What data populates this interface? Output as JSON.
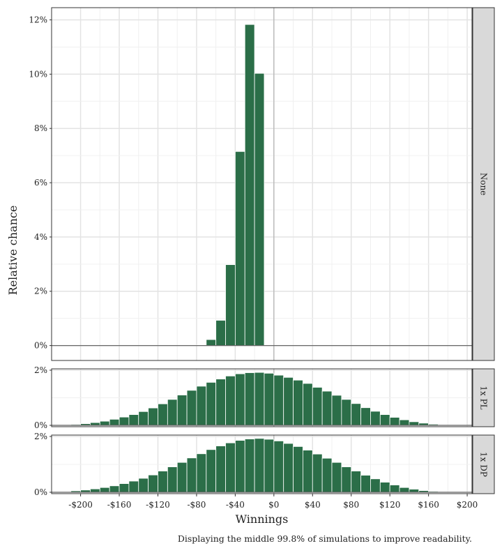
{
  "chart_data": {
    "type": "bar",
    "xlabel": "Winnings",
    "ylabel": "Relative chance",
    "caption": "Displaying the middle 99.8% of simulations to improve readability.",
    "x_ticks": [
      "-$200",
      "-$160",
      "-$120",
      "-$80",
      "-$40",
      "$0",
      "$40",
      "$80",
      "$120",
      "$160",
      "$200"
    ],
    "x_tick_values": [
      -200,
      -160,
      -120,
      -80,
      -40,
      0,
      40,
      80,
      120,
      160,
      200
    ],
    "xlim": [
      -230,
      205
    ],
    "bin_width": 10,
    "bar_color": "#2b6e48",
    "grid": true,
    "panels": [
      {
        "strip": "None",
        "ylim": [
          -0.55,
          12.45
        ],
        "y_ticks": [
          "0%",
          "2%",
          "4%",
          "6%",
          "8%",
          "10%",
          "12%"
        ],
        "y_tick_values": [
          0,
          2,
          4,
          6,
          8,
          10,
          12
        ],
        "bins_x": [
          -70,
          -60,
          -50,
          -40,
          -30,
          -20,
          -10
        ],
        "values": [
          0.02,
          0.22,
          0.93,
          2.98,
          7.15,
          11.83,
          10.03
        ]
      },
      {
        "strip": "1x PL",
        "ylim": [
          -0.05,
          2.05
        ],
        "y_ticks": [
          "0%",
          "2%"
        ],
        "y_tick_values": [
          0,
          2
        ],
        "bins_x": [
          -200,
          -190,
          -180,
          -170,
          -160,
          -150,
          -140,
          -130,
          -120,
          -110,
          -100,
          -90,
          -80,
          -70,
          -60,
          -50,
          -40,
          -30,
          -20,
          -10,
          0,
          10,
          20,
          30,
          40,
          50,
          60,
          70,
          80,
          90,
          100,
          110,
          120,
          130,
          140,
          150,
          160,
          170
        ],
        "values": [
          0.03,
          0.06,
          0.1,
          0.15,
          0.22,
          0.3,
          0.39,
          0.5,
          0.63,
          0.78,
          0.94,
          1.1,
          1.27,
          1.42,
          1.56,
          1.68,
          1.79,
          1.87,
          1.91,
          1.92,
          1.89,
          1.82,
          1.74,
          1.64,
          1.52,
          1.38,
          1.24,
          1.09,
          0.94,
          0.79,
          0.64,
          0.51,
          0.39,
          0.29,
          0.2,
          0.13,
          0.08,
          0.04
        ]
      },
      {
        "strip": "1x DP",
        "ylim": [
          -0.05,
          2.05
        ],
        "y_ticks": [
          "0%",
          "2%"
        ],
        "y_tick_values": [
          0,
          2
        ],
        "bins_x": [
          -200,
          -190,
          -180,
          -170,
          -160,
          -150,
          -140,
          -130,
          -120,
          -110,
          -100,
          -90,
          -80,
          -70,
          -60,
          -50,
          -40,
          -30,
          -20,
          -10,
          0,
          10,
          20,
          30,
          40,
          50,
          60,
          70,
          80,
          90,
          100,
          110,
          120,
          130,
          140,
          150,
          160,
          170
        ],
        "values": [
          0.05,
          0.08,
          0.12,
          0.17,
          0.23,
          0.31,
          0.4,
          0.5,
          0.62,
          0.76,
          0.91,
          1.07,
          1.23,
          1.38,
          1.53,
          1.66,
          1.77,
          1.86,
          1.91,
          1.93,
          1.9,
          1.84,
          1.75,
          1.64,
          1.51,
          1.37,
          1.22,
          1.07,
          0.91,
          0.76,
          0.61,
          0.48,
          0.36,
          0.26,
          0.17,
          0.11,
          0.06,
          0.03
        ]
      }
    ]
  }
}
